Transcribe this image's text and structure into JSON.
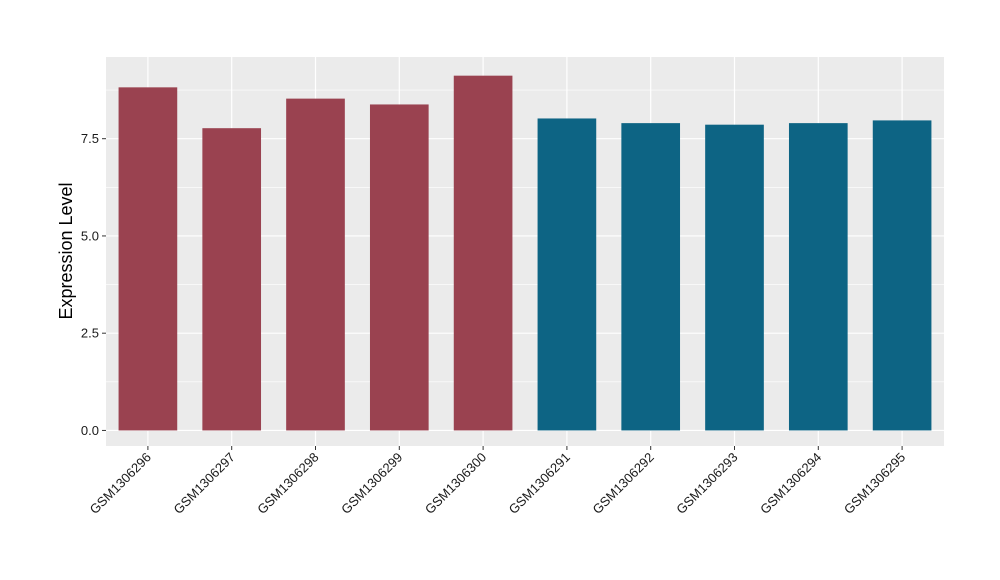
{
  "chart_data": {
    "type": "bar",
    "title": "",
    "xlabel": "",
    "ylabel": "Expression Level",
    "ylim": [
      -0.4,
      9.6
    ],
    "yticks": [
      0.0,
      2.5,
      5.0,
      7.5
    ],
    "ytick_labels": [
      "0.0",
      "2.5",
      "5.0",
      "7.5"
    ],
    "grid": true,
    "legend": "none",
    "categories": [
      "GSM1306296",
      "GSM1306297",
      "GSM1306298",
      "GSM1306299",
      "GSM1306300",
      "GSM1306291",
      "GSM1306292",
      "GSM1306293",
      "GSM1306294",
      "GSM1306295"
    ],
    "values": [
      8.82,
      7.77,
      8.53,
      8.38,
      9.12,
      8.02,
      7.9,
      7.86,
      7.9,
      7.97
    ],
    "bar_colors": [
      "#9a4250",
      "#9a4250",
      "#9a4250",
      "#9a4250",
      "#9a4250",
      "#0d6484",
      "#0d6484",
      "#0d6484",
      "#0d6484",
      "#0d6484"
    ],
    "panel_background": "#ebebeb",
    "grid_color": "#ffffff"
  }
}
